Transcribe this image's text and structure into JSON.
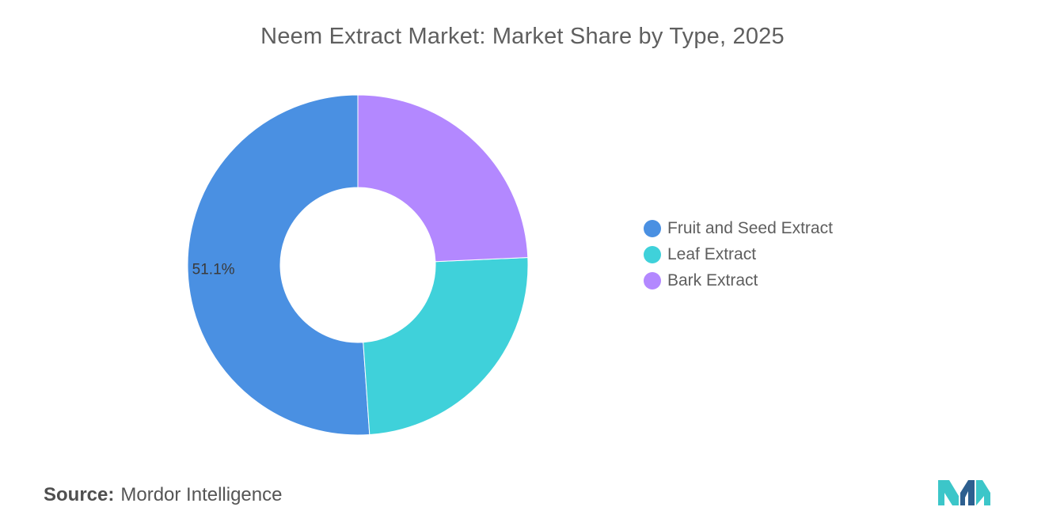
{
  "header": {
    "title": "Neem Extract Market: Market Share by Type, 2025"
  },
  "chart_data": {
    "type": "pie",
    "donut": true,
    "title": "Neem Extract Market: Market Share by Type, 2025",
    "categories": [
      "Fruit and Seed Extract",
      "Leaf Extract",
      "Bark Extract"
    ],
    "values": [
      51.1,
      24.6,
      24.3
    ],
    "colors": [
      "#4a90e2",
      "#3fd1da",
      "#b388ff"
    ],
    "data_labels": [
      "51.1%",
      "",
      ""
    ],
    "legend_position": "right"
  },
  "footer": {
    "source_label": "Source:",
    "source_value": "Mordor Intelligence"
  },
  "logo": {
    "icon": "mordor-intelligence-logo",
    "colors": [
      "#2d5f8f",
      "#3cc6c9"
    ]
  }
}
